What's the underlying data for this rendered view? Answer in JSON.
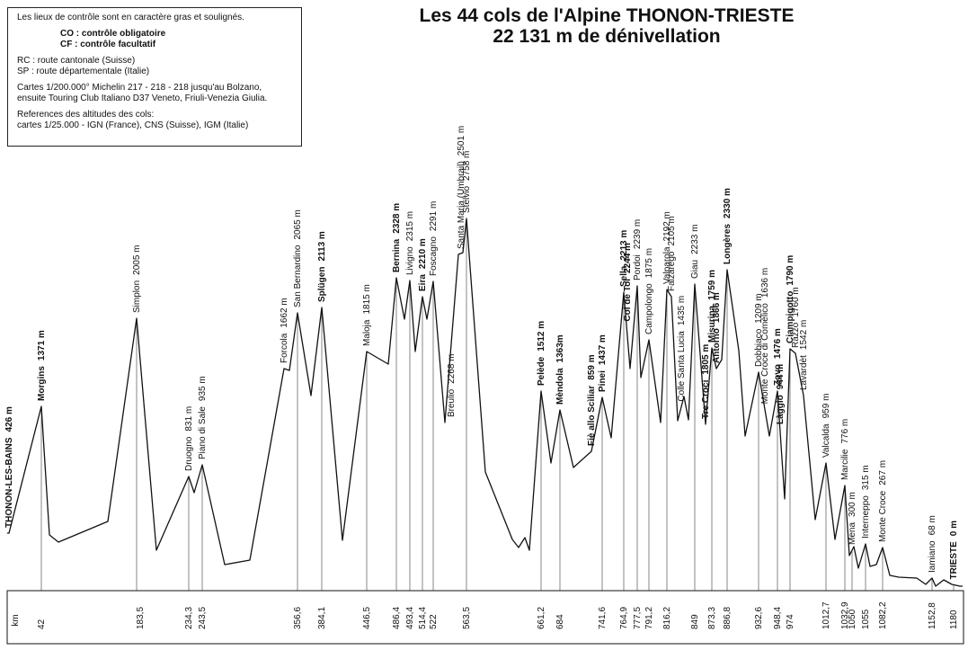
{
  "title": {
    "line1": "Les 44 cols de l'Alpine THONON-TRIESTE",
    "line2": "22 131 m de dénivellation"
  },
  "legend": {
    "intro": "Les lieux de contrôle sont en caractère gras et soulignés.",
    "co": "CO : contrôle obligatoire",
    "cf": "CF : contrôle facultatif",
    "rc": "RC : route cantonale (Suisse)",
    "sp": "SP : route départementale (Italie)",
    "maps1": "Cartes 1/200.000° Michelin 217 - 218 - 218 jusqu'au Bolzano,",
    "maps2": "ensuite Touring Club Italiano D37 Veneto, Friuli-Venezia Giulia.",
    "refs1": "References des altitudes des cols:",
    "refs2": "cartes 1/25.000 - IGN (France), CNS (Suisse), IGM (Italie)"
  },
  "axis": {
    "unit": "km"
  },
  "chart_data": {
    "type": "area",
    "xlabel": "km",
    "x_range": [
      0,
      1180
    ],
    "y_range": [
      0,
      2800
    ],
    "places": [
      {
        "name": "THONON-LES-BAINS",
        "alt": "426 m",
        "km": 0,
        "elev": 426,
        "bold": true
      },
      {
        "name": "Morgins",
        "alt": "1371 m",
        "km": 42,
        "elev": 1371,
        "bold": true
      },
      {
        "name": "Simplon",
        "alt": "2005 m",
        "km": 183.5,
        "elev": 2005
      },
      {
        "name": "Druogno",
        "alt": "831 m",
        "km": 234.3,
        "elev": 831
      },
      {
        "name": "Piano di Sale",
        "alt": "935 m",
        "km": 243.5,
        "elev": 935
      },
      {
        "name": "Forcola",
        "alt": "1662 m",
        "elev": 1662
      },
      {
        "name": "San Bernardino",
        "alt": "2065 m",
        "km": 356.6,
        "elev": 2065
      },
      {
        "name": "Splügen",
        "alt": "2113 m",
        "km": 384.1,
        "elev": 2113,
        "bold": true
      },
      {
        "name": "Maloja",
        "alt": "1815 m",
        "km": 446.5,
        "elev": 1815
      },
      {
        "name": "Bernina",
        "alt": "2328 m",
        "km": 486.4,
        "elev": 2328,
        "bold": true
      },
      {
        "name": "Livigno",
        "alt": "2315 m",
        "km": 493.4,
        "elev": 2315
      },
      {
        "name": "Eira",
        "alt": "2210 m",
        "km": 514.4,
        "elev": 2210,
        "bold": true
      },
      {
        "name": "Foscagno",
        "alt": "2291 m",
        "km": 522,
        "elev": 2291
      },
      {
        "name": "Breulio",
        "alt": "2268 m",
        "elev": 2268
      },
      {
        "name": "Santa Maria (Umbrail)",
        "alt": "2501 m",
        "elev": 2501
      },
      {
        "name": "Stelvio",
        "alt": "2758 m",
        "km": 563.5,
        "elev": 2758
      },
      {
        "name": "Pelède",
        "alt": "1512 m",
        "km": 661.2,
        "elev": 1512,
        "bold": true
      },
      {
        "name": "Mèndola",
        "alt": "1363m",
        "km": 684,
        "elev": 1363,
        "bold": true
      },
      {
        "name": "Fiè allo Scìliar",
        "alt": "859 m",
        "elev": 859,
        "bold": true
      },
      {
        "name": "Pinei",
        "alt": "1437 m",
        "km": 741.6,
        "elev": 1437,
        "bold": true
      },
      {
        "name": "Sella",
        "alt": "2213 m",
        "km": 764.9,
        "elev": 2213,
        "bold": true
      },
      {
        "name": "Col de Tol",
        "alt": "2244 m",
        "elev": 2244,
        "bold": true
      },
      {
        "name": "Pordoi",
        "alt": "2239 m",
        "km": 777.5,
        "elev": 2239
      },
      {
        "name": "Campolongo",
        "alt": "1875 m",
        "km": 791.2,
        "elev": 1875
      },
      {
        "name": "Valparola",
        "alt": "2192 m",
        "km": 816.2,
        "elev": 2192
      },
      {
        "name": "Falzarego",
        "alt": "2105 m",
        "elev": 2105
      },
      {
        "name": "Colle Santa Lucia",
        "alt": "1435 m",
        "elev": 1435
      },
      {
        "name": "Giau",
        "alt": "2233 m",
        "km": 849,
        "elev": 2233
      },
      {
        "name": "Tre Croci",
        "alt": "1805 m",
        "elev": 1805,
        "bold": true
      },
      {
        "name": "Misurina",
        "alt": "1759 m",
        "km": 873.3,
        "elev": 1759,
        "bold": true
      },
      {
        "name": "Antorno",
        "alt": "1866 m",
        "elev": 1866,
        "bold": true
      },
      {
        "name": "Longères",
        "alt": "2330 m",
        "km": 886.8,
        "elev": 2330,
        "bold": true
      },
      {
        "name": "Dobbiaco",
        "alt": "1209 m",
        "km": 932.6,
        "elev": 1209
      },
      {
        "name": "Monte Croce di Comèlico",
        "alt": "1636 m",
        "elev": 1636
      },
      {
        "name": "Zovo",
        "alt": "1476 m",
        "km": 948.4,
        "elev": 1476,
        "bold": true
      },
      {
        "name": "Làggio",
        "alt": "944 m",
        "elev": 944,
        "bold": true
      },
      {
        "name": "Ciampigotto",
        "alt": "1790 m",
        "km": 974,
        "elev": 1790,
        "bold": true
      },
      {
        "name": "Razzo",
        "alt": "1760 m",
        "elev": 1760
      },
      {
        "name": "Lavardèt",
        "alt": "1542 m",
        "elev": 1542
      },
      {
        "name": "Valcalda",
        "alt": "959 m",
        "km": 1012.7,
        "elev": 959
      },
      {
        "name": "Marcilie",
        "alt": "776 m",
        "km": 1032.9,
        "elev": 776
      },
      {
        "name": "Mena",
        "alt": "300 m",
        "km": 1050,
        "elev": 300
      },
      {
        "name": "Interneppo",
        "alt": "315 m",
        "km": 1055,
        "elev": 315
      },
      {
        "name": "Monte Croce",
        "alt": "267 m",
        "km": 1082.2,
        "elev": 267
      },
      {
        "name": "Iamiano",
        "alt": "68 m",
        "km": 1152.8,
        "elev": 68
      },
      {
        "name": "TRIESTE",
        "alt": "0 m",
        "km": 1180,
        "elev": 0,
        "bold": true
      }
    ],
    "km_ticks": [
      "42",
      "183,5",
      "234,3",
      "243,5",
      "356,6",
      "384,1",
      "446,5",
      "486,4",
      "493,4",
      "514,4",
      "522",
      "563,5",
      "661,2",
      "684",
      "741,6",
      "764,9",
      "777,5",
      "791,2",
      "816,2",
      "849",
      "873,3",
      "886,8",
      "932,6",
      "948,4",
      "974",
      "1012,7",
      "1032,9",
      "1050",
      "1055",
      "1082,2",
      "1152,8",
      "1180"
    ]
  }
}
